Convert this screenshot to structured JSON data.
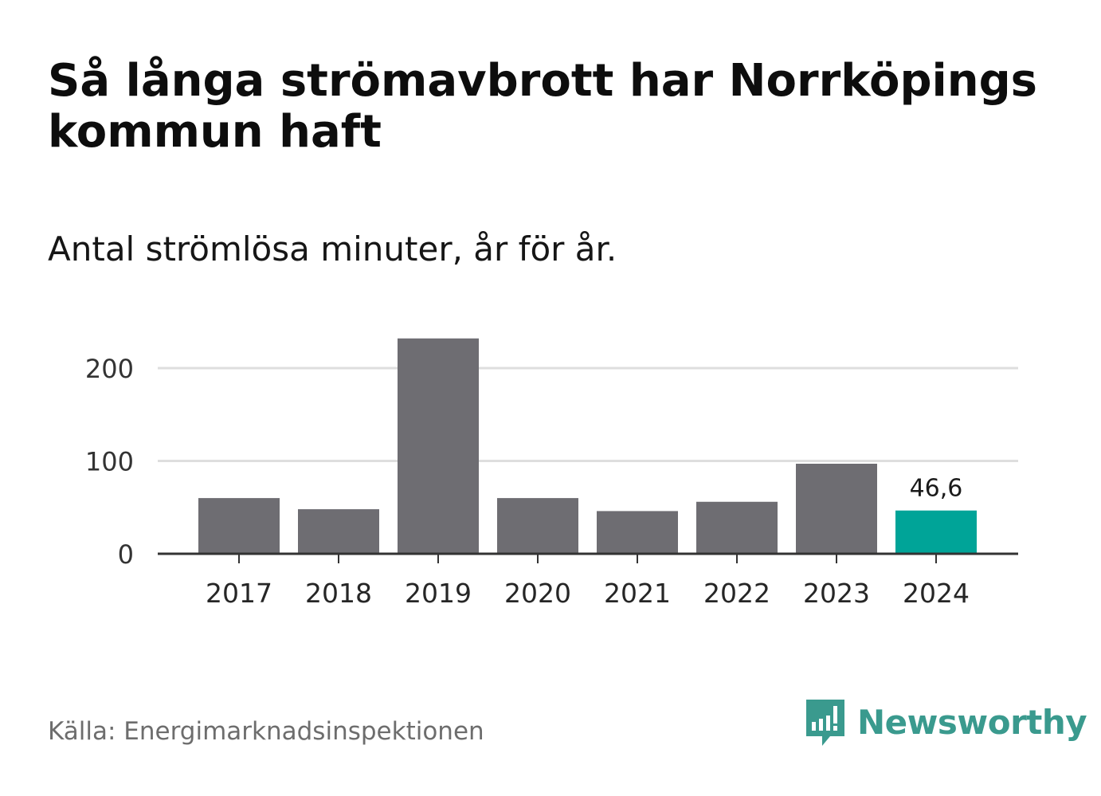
{
  "header": {
    "title": "Så långa strömavbrott har Norrköpings kommun haft",
    "subtitle": "Antal strömlösa minuter, år för år."
  },
  "footer": {
    "source": "Källa: Energimarknadsinspektionen",
    "brand": "Newsworthy"
  },
  "colors": {
    "bar": "#6e6d72",
    "highlight": "#00a498",
    "grid": "#dedede",
    "axis": "#333333",
    "brand": "#3a9a8e"
  },
  "chart_data": {
    "type": "bar",
    "title": "Så långa strömavbrott har Norrköpings kommun haft",
    "subtitle": "Antal strömlösa minuter, år för år.",
    "xlabel": "",
    "ylabel": "",
    "categories": [
      "2017",
      "2018",
      "2019",
      "2020",
      "2021",
      "2022",
      "2023",
      "2024"
    ],
    "values": [
      60,
      48,
      232,
      60,
      46,
      56,
      97,
      46.6
    ],
    "ylim": [
      0,
      240
    ],
    "yticks": [
      0,
      100,
      200
    ],
    "ytick_labels": [
      "0",
      "100",
      "200"
    ],
    "grid": true,
    "highlight_index": 7,
    "data_label": "46,6"
  }
}
